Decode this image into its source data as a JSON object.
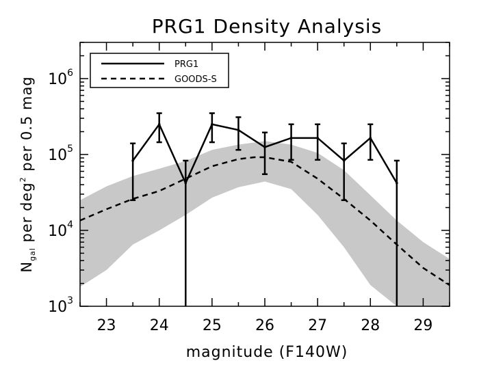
{
  "chart_data": {
    "type": "line",
    "title": "PRG1 Density Analysis",
    "xlabel": "magnitude (F140W)",
    "ylabel": {
      "prefix": "N",
      "sub": "gal",
      "mid": " per deg",
      "sup": "2",
      "suffix": " per 0.5 mag"
    },
    "xlim": [
      22.5,
      29.5
    ],
    "ylim": [
      1000,
      3000000
    ],
    "yscale": "log",
    "xticks": [
      "23",
      "24",
      "25",
      "26",
      "27",
      "28",
      "29"
    ],
    "yticks": [
      {
        "base": "10",
        "exp": "3"
      },
      {
        "base": "10",
        "exp": "4"
      },
      {
        "base": "10",
        "exp": "5"
      },
      {
        "base": "10",
        "exp": "6"
      }
    ],
    "legend_position": "top-left",
    "series": [
      {
        "name": "PRG1",
        "style": "solid",
        "x": [
          23.5,
          24.0,
          24.5,
          25.0,
          25.5,
          26.0,
          26.5,
          27.0,
          27.5,
          28.0,
          28.5
        ],
        "y": [
          83000,
          250000,
          42000,
          250000,
          210000,
          125000,
          165000,
          165000,
          83000,
          165000,
          42000
        ],
        "yerr_low": [
          25000,
          145000,
          1000,
          145000,
          115000,
          55000,
          85000,
          85000,
          25000,
          85000,
          1000
        ],
        "yerr_high": [
          140000,
          350000,
          83000,
          350000,
          310000,
          195000,
          250000,
          250000,
          140000,
          250000,
          83000
        ]
      },
      {
        "name": "GOODS-S",
        "style": "dashed",
        "x": [
          22.5,
          23.0,
          23.5,
          24.0,
          24.5,
          25.0,
          25.5,
          25.8,
          26.0,
          26.5,
          27.0,
          27.5,
          28.0,
          28.5,
          29.0,
          29.5
        ],
        "y": [
          13500,
          19000,
          26000,
          33000,
          48000,
          70000,
          87000,
          92000,
          92000,
          80000,
          48000,
          26000,
          13500,
          6500,
          3200,
          1900
        ]
      }
    ],
    "band": {
      "x": [
        22.5,
        23.0,
        23.5,
        24.0,
        24.5,
        25.0,
        25.5,
        26.0,
        26.5,
        27.0,
        27.5,
        28.0,
        28.5,
        29.0,
        29.5
      ],
      "low": [
        1800,
        3000,
        6500,
        10000,
        16000,
        27000,
        37000,
        44000,
        35000,
        16000,
        6000,
        1900,
        1000,
        1000,
        1000
      ],
      "high": [
        25000,
        38000,
        52000,
        65000,
        82000,
        115000,
        135000,
        150000,
        135000,
        105000,
        62000,
        29000,
        13500,
        7000,
        4200
      ]
    },
    "band_color": "#c8c8c8",
    "line_color": "#000000"
  }
}
